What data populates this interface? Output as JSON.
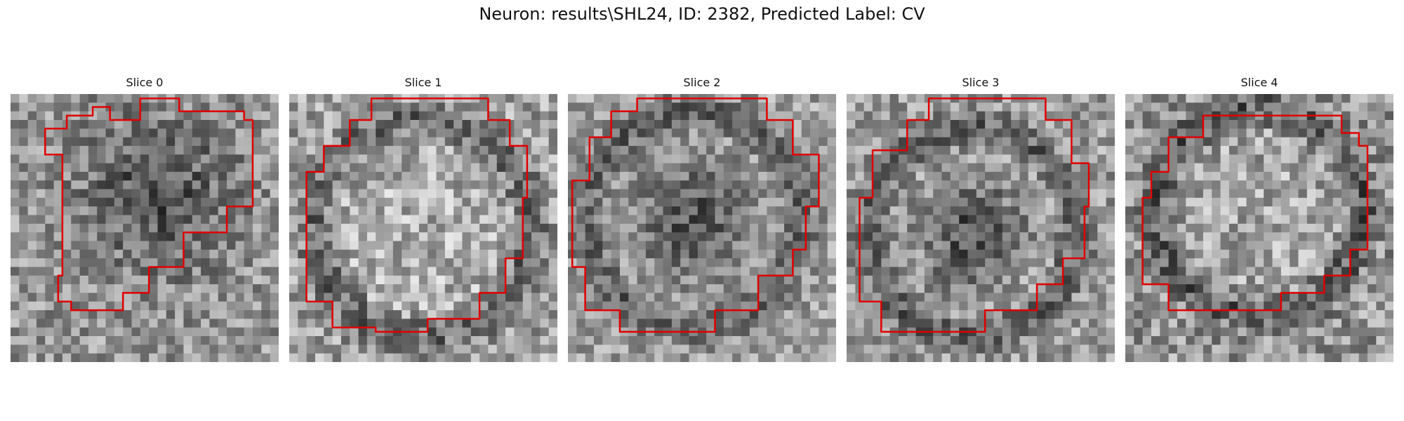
{
  "title": "Neuron: results\\SHL24, ID: 2382, Predicted Label: CV",
  "panels": [
    {
      "label": "Slice 0"
    },
    {
      "label": "Slice 1"
    },
    {
      "label": "Slice 2"
    },
    {
      "label": "Slice 3"
    },
    {
      "label": "Slice 4"
    }
  ],
  "colors": {
    "contour": "#e00000",
    "background": "#ffffff"
  }
}
